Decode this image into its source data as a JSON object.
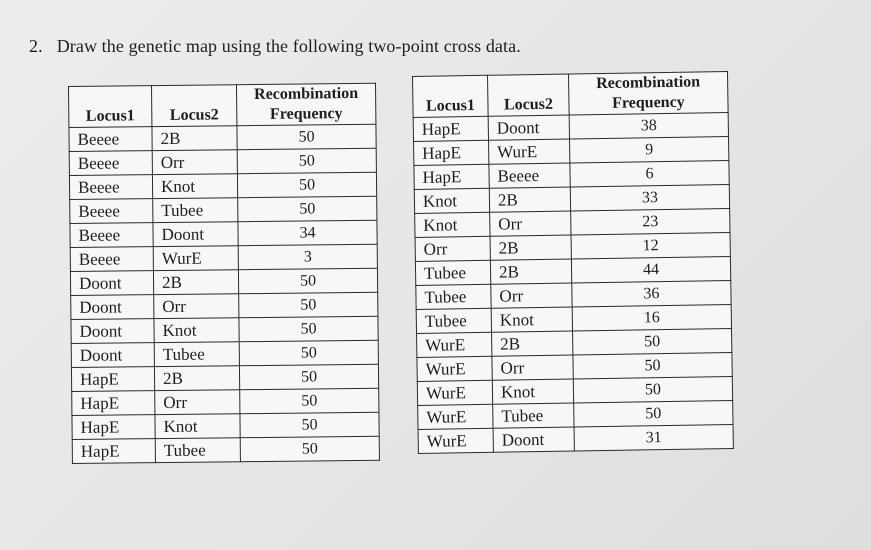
{
  "question": {
    "number": "2.",
    "text": "Draw the genetic map using the following two-point cross data."
  },
  "tables": [
    {
      "headers": {
        "locus1": "Locus1",
        "locus2": "Locus2",
        "freq_line1": "Recombination",
        "freq_line2": "Frequency"
      },
      "rows": [
        [
          "Beeee",
          "2B",
          "50"
        ],
        [
          "Beeee",
          "Orr",
          "50"
        ],
        [
          "Beeee",
          "Knot",
          "50"
        ],
        [
          "Beeee",
          "Tubee",
          "50"
        ],
        [
          "Beeee",
          "Doont",
          "34"
        ],
        [
          "Beeee",
          "WurE",
          "3"
        ],
        [
          "Doont",
          "2B",
          "50"
        ],
        [
          "Doont",
          "Orr",
          "50"
        ],
        [
          "Doont",
          "Knot",
          "50"
        ],
        [
          "Doont",
          "Tubee",
          "50"
        ],
        [
          "HapE",
          "2B",
          "50"
        ],
        [
          "HapE",
          "Orr",
          "50"
        ],
        [
          "HapE",
          "Knot",
          "50"
        ],
        [
          "HapE",
          "Tubee",
          "50"
        ]
      ]
    },
    {
      "headers": {
        "locus1": "Locus1",
        "locus2": "Locus2",
        "freq_line1": "Recombination",
        "freq_line2": "Frequency"
      },
      "rows": [
        [
          "HapE",
          "Doont",
          "38"
        ],
        [
          "HapE",
          "WurE",
          "9"
        ],
        [
          "HapE",
          "Beeee",
          "6"
        ],
        [
          "Knot",
          "2B",
          "33"
        ],
        [
          "Knot",
          "Orr",
          "23"
        ],
        [
          "Orr",
          "2B",
          "12"
        ],
        [
          "Tubee",
          "2B",
          "44"
        ],
        [
          "Tubee",
          "Orr",
          "36"
        ],
        [
          "Tubee",
          "Knot",
          "16"
        ],
        [
          "WurE",
          "2B",
          "50"
        ],
        [
          "WurE",
          "Orr",
          "50"
        ],
        [
          "WurE",
          "Knot",
          "50"
        ],
        [
          "WurE",
          "Tubee",
          "50"
        ],
        [
          "WurE",
          "Doont",
          "31"
        ]
      ]
    }
  ]
}
